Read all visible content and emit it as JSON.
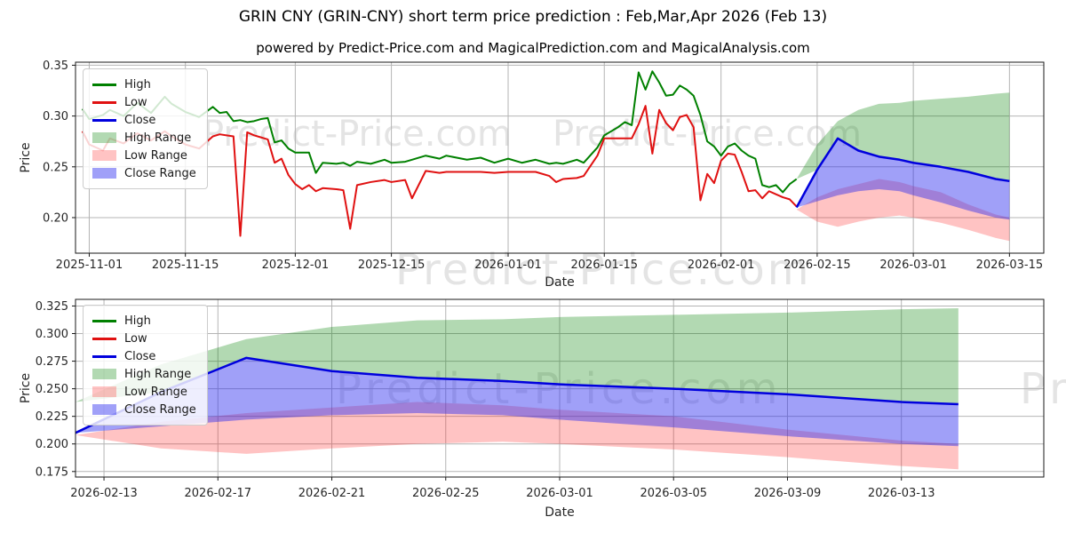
{
  "title": "GRIN CNY (GRIN-CNY) short term price prediction : Feb,Mar,Apr 2026 (Feb 13)",
  "subtitle": "powered by Predict-Price.com and MagicalPrediction.com and MagicalAnalysis.com",
  "watermark_text": "Predict-Price.com",
  "colors": {
    "high": "#008000",
    "low": "#e01111",
    "close": "#0000dd",
    "high_range_fill": "rgba(0,128,0,0.30)",
    "low_range_fill": "rgba(255,40,40,0.28)",
    "close_range_fill": "rgba(45,45,240,0.45)",
    "grid": "#b4b4b4",
    "axis": "#1a1a1a",
    "tick_text": "#262626",
    "watermark": "#e4e4e4"
  },
  "legend_items": [
    {
      "label": "High",
      "swatch": "line",
      "color": "#008000"
    },
    {
      "label": "Low",
      "swatch": "line",
      "color": "#e01111"
    },
    {
      "label": "Close",
      "swatch": "line",
      "color": "#0000dd"
    },
    {
      "label": "High Range",
      "swatch": "fill",
      "color": "rgba(0,128,0,0.30)"
    },
    {
      "label": "Low Range",
      "swatch": "fill",
      "color": "rgba(255,40,40,0.28)"
    },
    {
      "label": "Close Range",
      "swatch": "fill",
      "color": "rgba(45,45,240,0.45)"
    }
  ],
  "chart_data": [
    {
      "type": "line",
      "name": "history-and-forecast",
      "xlabel": "Date",
      "ylabel": "Price",
      "grid": true,
      "legend_position": "upper left",
      "x_range": [
        "2025-10-30",
        "2026-03-20"
      ],
      "y_range": [
        0.165,
        0.353
      ],
      "x_ticks": [
        "2025-11-01",
        "2025-11-15",
        "2025-12-01",
        "2025-12-15",
        "2026-01-01",
        "2026-01-15",
        "2026-02-01",
        "2026-02-15",
        "2026-03-01",
        "2026-03-15"
      ],
      "y_ticks": [
        "0.35",
        "0.30",
        "0.25",
        "0.20"
      ],
      "y_tick_values": [
        0.35,
        0.3,
        0.25,
        0.2
      ],
      "series": {
        "history": {
          "dates": [
            "2025-10-31",
            "2025-11-01",
            "2025-11-03",
            "2025-11-04",
            "2025-11-06",
            "2025-11-08",
            "2025-11-10",
            "2025-11-12",
            "2025-11-13",
            "2025-11-15",
            "2025-11-17",
            "2025-11-19",
            "2025-11-20",
            "2025-11-21",
            "2025-11-22",
            "2025-11-23",
            "2025-11-24",
            "2025-11-25",
            "2025-11-26",
            "2025-11-27",
            "2025-11-28",
            "2025-11-29",
            "2025-11-30",
            "2025-12-01",
            "2025-12-02",
            "2025-12-03",
            "2025-12-04",
            "2025-12-05",
            "2025-12-07",
            "2025-12-08",
            "2025-12-09",
            "2025-12-10",
            "2025-12-12",
            "2025-12-14",
            "2025-12-15",
            "2025-12-17",
            "2025-12-18",
            "2025-12-20",
            "2025-12-22",
            "2025-12-23",
            "2025-12-26",
            "2025-12-28",
            "2025-12-30",
            "2026-01-01",
            "2026-01-03",
            "2026-01-05",
            "2026-01-07",
            "2026-01-08",
            "2026-01-09",
            "2026-01-11",
            "2026-01-12",
            "2026-01-14",
            "2026-01-15",
            "2026-01-17",
            "2026-01-18",
            "2026-01-19",
            "2026-01-20",
            "2026-01-21",
            "2026-01-22",
            "2026-01-23",
            "2026-01-24",
            "2026-01-25",
            "2026-01-26",
            "2026-01-27",
            "2026-01-28",
            "2026-01-29",
            "2026-01-30",
            "2026-01-31",
            "2026-02-01",
            "2026-02-02",
            "2026-02-03",
            "2026-02-04",
            "2026-02-05",
            "2026-02-06",
            "2026-02-07",
            "2026-02-08",
            "2026-02-09",
            "2026-02-10",
            "2026-02-11",
            "2026-02-12"
          ],
          "high": [
            0.307,
            0.297,
            0.301,
            0.306,
            0.3,
            0.313,
            0.303,
            0.319,
            0.312,
            0.304,
            0.299,
            0.309,
            0.303,
            0.304,
            0.295,
            0.296,
            0.294,
            0.295,
            0.297,
            0.298,
            0.274,
            0.276,
            0.268,
            0.264,
            0.264,
            0.264,
            0.244,
            0.254,
            0.253,
            0.254,
            0.251,
            0.255,
            0.253,
            0.257,
            0.254,
            0.255,
            0.257,
            0.261,
            0.258,
            0.261,
            0.257,
            0.259,
            0.254,
            0.258,
            0.254,
            0.257,
            0.253,
            0.254,
            0.253,
            0.257,
            0.254,
            0.269,
            0.281,
            0.289,
            0.294,
            0.291,
            0.343,
            0.326,
            0.344,
            0.333,
            0.32,
            0.321,
            0.33,
            0.326,
            0.32,
            0.301,
            0.275,
            0.27,
            0.261,
            0.27,
            0.273,
            0.266,
            0.261,
            0.258,
            0.232,
            0.23,
            0.232,
            0.225,
            0.233,
            0.238
          ],
          "low": [
            0.285,
            0.272,
            0.266,
            0.278,
            0.273,
            0.283,
            0.276,
            0.285,
            0.28,
            0.272,
            0.268,
            0.28,
            0.282,
            0.281,
            0.28,
            0.182,
            0.284,
            0.281,
            0.279,
            0.277,
            0.254,
            0.258,
            0.242,
            0.233,
            0.228,
            0.232,
            0.226,
            0.229,
            0.228,
            0.227,
            0.189,
            0.232,
            0.235,
            0.237,
            0.235,
            0.237,
            0.219,
            0.246,
            0.244,
            0.245,
            0.245,
            0.245,
            0.244,
            0.245,
            0.245,
            0.245,
            0.241,
            0.235,
            0.238,
            0.239,
            0.241,
            0.261,
            0.278,
            0.278,
            0.278,
            0.278,
            0.292,
            0.31,
            0.263,
            0.306,
            0.293,
            0.286,
            0.299,
            0.301,
            0.289,
            0.217,
            0.243,
            0.234,
            0.256,
            0.263,
            0.262,
            0.245,
            0.226,
            0.227,
            0.219,
            0.226,
            0.223,
            0.22,
            0.218,
            0.211
          ]
        },
        "forecast": {
          "dates": [
            "2026-02-12",
            "2026-02-15",
            "2026-02-18",
            "2026-02-21",
            "2026-02-24",
            "2026-02-27",
            "2026-03-01",
            "2026-03-05",
            "2026-03-09",
            "2026-03-13",
            "2026-03-15"
          ],
          "close": [
            0.21,
            0.247,
            0.278,
            0.266,
            0.26,
            0.257,
            0.254,
            0.25,
            0.245,
            0.238,
            0.236
          ],
          "high_range": {
            "upper": [
              0.238,
              0.272,
              0.295,
              0.306,
              0.312,
              0.313,
              0.315,
              0.317,
              0.319,
              0.322,
              0.323
            ],
            "lower": [
              0.238,
              0.247,
              0.278,
              0.266,
              0.26,
              0.257,
              0.254,
              0.25,
              0.245,
              0.238,
              0.236
            ]
          },
          "low_range": {
            "upper": [
              0.208,
              0.22,
              0.228,
              0.233,
              0.238,
              0.235,
              0.231,
              0.225,
              0.213,
              0.203,
              0.2
            ],
            "lower": [
              0.208,
              0.196,
              0.191,
              0.196,
              0.2,
              0.202,
              0.2,
              0.195,
              0.188,
              0.18,
              0.177
            ]
          },
          "close_range": {
            "upper": [
              0.21,
              0.247,
              0.278,
              0.266,
              0.26,
              0.257,
              0.254,
              0.25,
              0.245,
              0.238,
              0.236
            ],
            "lower": [
              0.21,
              0.216,
              0.222,
              0.226,
              0.228,
              0.226,
              0.222,
              0.215,
              0.207,
              0.2,
              0.198
            ]
          }
        }
      }
    },
    {
      "type": "line",
      "name": "forecast-zoom",
      "xlabel": "Date",
      "ylabel": "Price",
      "grid": true,
      "legend_position": "upper left",
      "x_range": [
        "2026-02-12",
        "2026-03-18"
      ],
      "y_range": [
        0.17,
        0.331
      ],
      "x_ticks": [
        "2026-02-13",
        "2026-02-17",
        "2026-02-21",
        "2026-02-25",
        "2026-03-01",
        "2026-03-05",
        "2026-03-09",
        "2026-03-13"
      ],
      "y_ticks": [
        "0.325",
        "0.300",
        "0.275",
        "0.250",
        "0.225",
        "0.200",
        "0.175"
      ],
      "y_tick_values": [
        0.325,
        0.3,
        0.275,
        0.25,
        0.225,
        0.2,
        0.175
      ],
      "series": {
        "forecast": {
          "dates": [
            "2026-02-12",
            "2026-02-15",
            "2026-02-18",
            "2026-02-21",
            "2026-02-24",
            "2026-02-27",
            "2026-03-01",
            "2026-03-05",
            "2026-03-09",
            "2026-03-13",
            "2026-03-15"
          ],
          "close": [
            0.21,
            0.247,
            0.278,
            0.266,
            0.26,
            0.257,
            0.254,
            0.25,
            0.245,
            0.238,
            0.236
          ],
          "high_range": {
            "upper": [
              0.238,
              0.272,
              0.295,
              0.306,
              0.312,
              0.313,
              0.315,
              0.317,
              0.319,
              0.322,
              0.323
            ],
            "lower": [
              0.238,
              0.247,
              0.278,
              0.266,
              0.26,
              0.257,
              0.254,
              0.25,
              0.245,
              0.238,
              0.236
            ]
          },
          "low_range": {
            "upper": [
              0.208,
              0.22,
              0.228,
              0.233,
              0.238,
              0.235,
              0.231,
              0.225,
              0.213,
              0.203,
              0.2
            ],
            "lower": [
              0.208,
              0.196,
              0.191,
              0.196,
              0.2,
              0.202,
              0.2,
              0.195,
              0.188,
              0.18,
              0.177
            ]
          },
          "close_range": {
            "upper": [
              0.21,
              0.247,
              0.278,
              0.266,
              0.26,
              0.257,
              0.254,
              0.25,
              0.245,
              0.238,
              0.236
            ],
            "lower": [
              0.21,
              0.216,
              0.222,
              0.226,
              0.228,
              0.226,
              0.222,
              0.215,
              0.207,
              0.2,
              0.198
            ]
          }
        }
      }
    }
  ]
}
